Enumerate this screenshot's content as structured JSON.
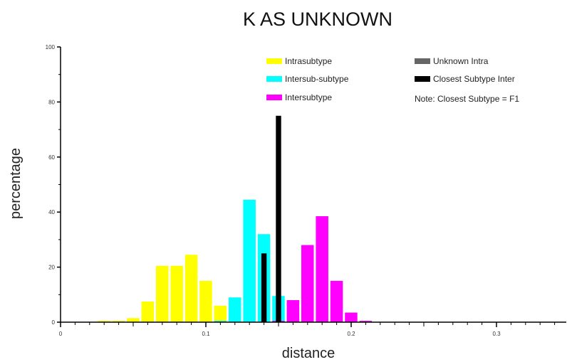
{
  "chart_data": {
    "type": "bar",
    "title": "K AS UNKNOWN",
    "xlabel": "distance",
    "ylabel": "percentage",
    "xlim": [
      0,
      0.35
    ],
    "ylim": [
      0,
      100
    ],
    "x_ticks": [
      "0",
      "0.1",
      "0.2",
      "0.3"
    ],
    "y_ticks": [
      "0",
      "20",
      "40",
      "60",
      "80",
      "100"
    ],
    "grid": false,
    "legend_position": "top-right",
    "bin_width": 0.01,
    "note": "Note: Closest Subtype = F1",
    "series": [
      {
        "name": "Intrasubtype",
        "color": "#ffff00",
        "x": [
          0.03,
          0.04,
          0.05,
          0.06,
          0.07,
          0.08,
          0.09,
          0.1,
          0.11,
          0.12
        ],
        "values": [
          0.5,
          0.5,
          1.5,
          7.5,
          20.5,
          20.5,
          24.5,
          15,
          6,
          1
        ]
      },
      {
        "name": "Intersub-subtype",
        "color": "#00ffff",
        "x": [
          0.11,
          0.12,
          0.13,
          0.14,
          0.15,
          0.16
        ],
        "values": [
          0.5,
          9,
          44.5,
          32,
          9.5,
          3
        ]
      },
      {
        "name": "Intersubtype",
        "color": "#ff00ff",
        "x": [
          0.15,
          0.16,
          0.17,
          0.18,
          0.19,
          0.2,
          0.21
        ],
        "values": [
          0.5,
          8,
          28,
          38.5,
          15,
          3.5,
          0.5
        ]
      },
      {
        "name": "Unknown Intra",
        "color": "#666666",
        "x": [],
        "values": []
      },
      {
        "name": "Closest Subtype Inter",
        "color": "#000000",
        "x": [
          0.14,
          0.15
        ],
        "values": [
          25,
          75
        ]
      }
    ]
  }
}
